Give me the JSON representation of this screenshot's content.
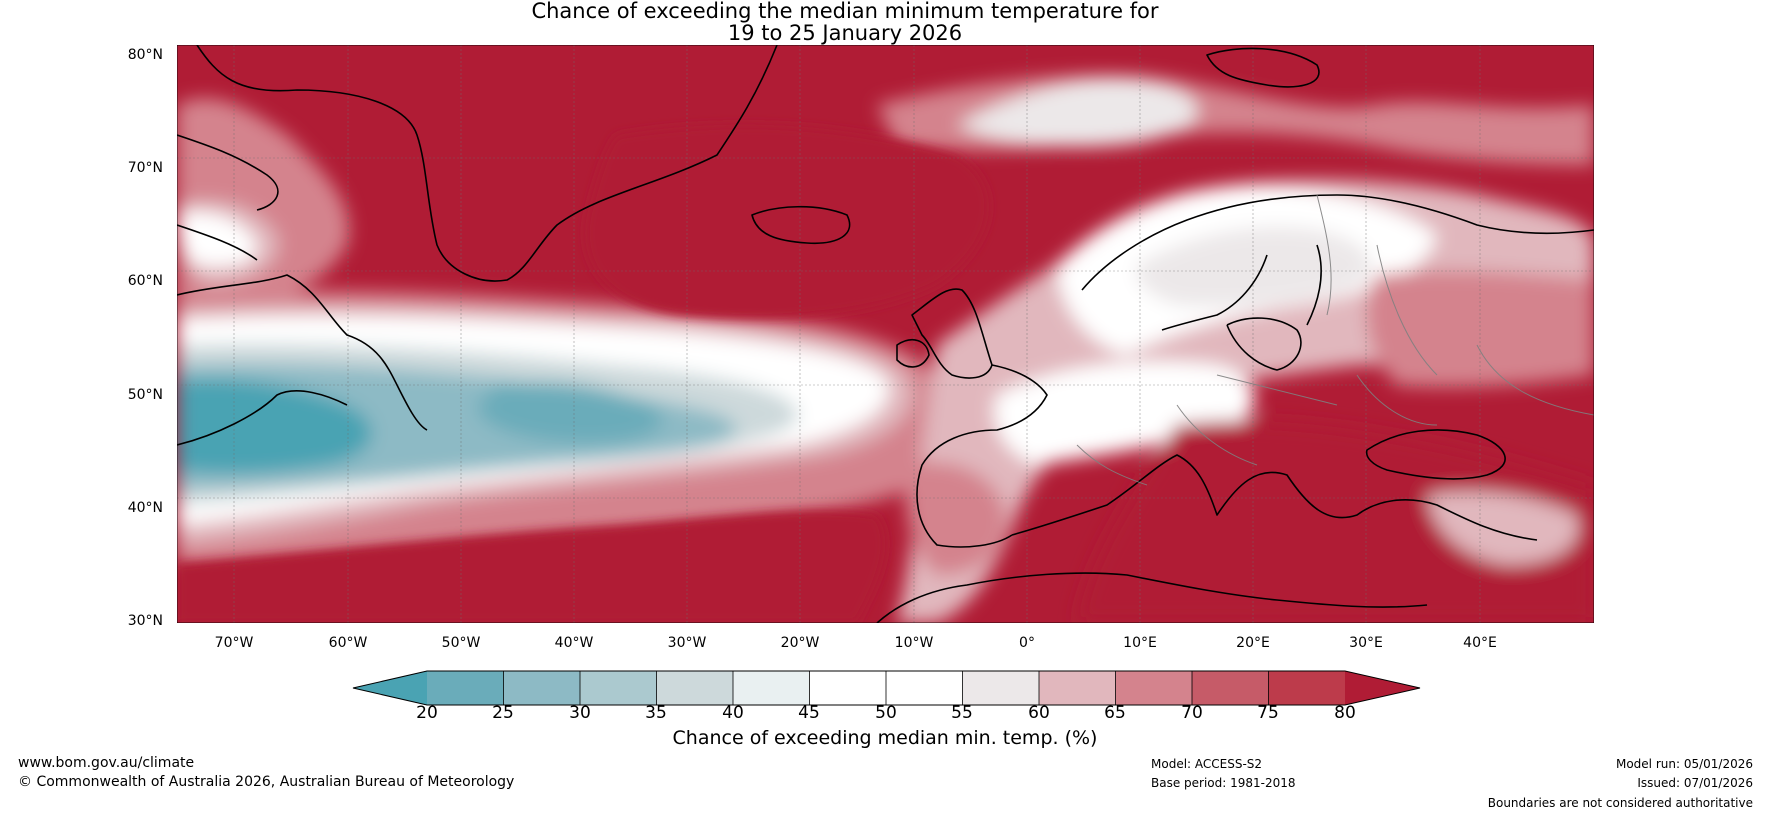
{
  "title": {
    "line1": "Chance of exceeding the median minimum temperature for",
    "line2": "19 to 25 January 2026"
  },
  "map": {
    "lat_labels": [
      "80°N",
      "70°N",
      "60°N",
      "50°N",
      "40°N",
      "30°N"
    ],
    "lon_labels": [
      "70°W",
      "60°W",
      "50°W",
      "40°W",
      "30°W",
      "20°W",
      "10°W",
      "0°",
      "10°E",
      "20°E",
      "30°E",
      "40°E"
    ],
    "regions": [
      "Greenland",
      "Iceland",
      "Scandinavia",
      "British Isles",
      "Newfoundland",
      "Mediterranean",
      "Black Sea",
      "North Africa",
      "Labrador Sea",
      "North Atlantic"
    ]
  },
  "colorbar": {
    "ticks": [
      "20",
      "25",
      "30",
      "35",
      "40",
      "45",
      "50",
      "55",
      "60",
      "65",
      "70",
      "75",
      "80"
    ],
    "colors": [
      "#4aa3b3",
      "#6aacba",
      "#8dbac5",
      "#abc9cf",
      "#cdd9db",
      "#e9f0f1",
      "#ffffff",
      "#ffffff",
      "#ece8e9",
      "#e1b7bd",
      "#d4838d",
      "#c65b68",
      "#bd3b4b",
      "#b01c35"
    ],
    "label": "Chance of exceeding median min. temp. (%)"
  },
  "footer": {
    "url": "www.bom.gov.au/climate",
    "copyright": "© Commonwealth of Australia 2026, Australian Bureau of Meteorology",
    "model": "Model: ACCESS-S2",
    "base_period": "Base period: 1981-2018",
    "model_run": "Model run: 05/01/2026",
    "issued": "Issued: 07/01/2026",
    "disclaimer": "Boundaries are not considered authoritative"
  },
  "palette": {
    "hot": "#b01c35",
    "cold": "#4aa3b3",
    "neutral": "#ffffff"
  }
}
